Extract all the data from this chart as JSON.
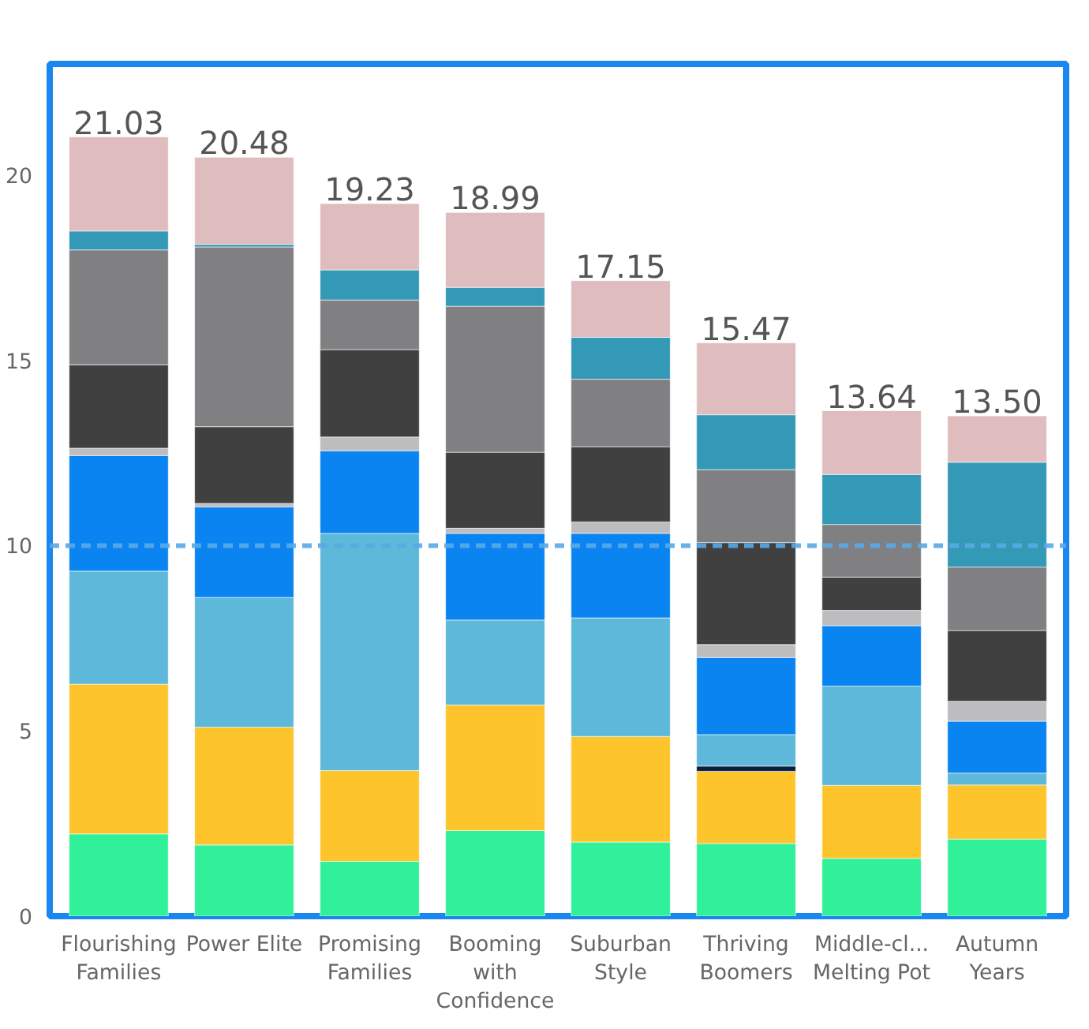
{
  "chart_data": {
    "type": "bar",
    "stacked": true,
    "categories": [
      "Flourishing Families",
      "Power Elite",
      "Promising Families",
      "Booming with Confidence",
      "Suburban Style",
      "Thriving Boomers",
      "Middle-cl... Melting Pot",
      "Autumn Years"
    ],
    "series": [
      {
        "color": "#31f09a",
        "values": [
          2.22,
          1.92,
          1.48,
          2.31,
          2.0,
          1.96,
          1.56,
          2.08
        ]
      },
      {
        "color": "#fec42c",
        "values": [
          4.04,
          3.18,
          2.45,
          3.39,
          2.85,
          1.95,
          1.97,
          1.46
        ]
      },
      {
        "color": "#0a1e3c",
        "values": [
          null,
          null,
          null,
          null,
          null,
          0.14,
          null,
          null
        ]
      },
      {
        "color": "#5db8d9",
        "values": [
          3.05,
          3.5,
          6.4,
          2.29,
          3.2,
          0.85,
          2.68,
          0.32
        ]
      },
      {
        "color": "#0a84f0",
        "values": [
          3.12,
          2.45,
          2.23,
          2.34,
          2.28,
          2.08,
          1.63,
          1.4
        ]
      },
      {
        "color": "#bdbdbf",
        "values": [
          0.2,
          0.09,
          0.37,
          0.14,
          0.31,
          0.35,
          0.41,
          0.54
        ]
      },
      {
        "color": "#404040",
        "values": [
          2.25,
          2.07,
          2.36,
          2.05,
          2.03,
          2.75,
          0.9,
          1.91
        ]
      },
      {
        "color": "#808083",
        "values": [
          3.1,
          4.85,
          1.34,
          3.94,
          1.82,
          1.97,
          1.42,
          1.71
        ]
      },
      {
        "color": "#3399b7",
        "values": [
          0.51,
          0.07,
          0.81,
          0.51,
          1.13,
          1.48,
          1.35,
          2.83
        ]
      },
      {
        "color": "#dfbcbe",
        "values": [
          2.54,
          2.35,
          1.79,
          2.02,
          1.53,
          1.94,
          1.72,
          1.25
        ]
      }
    ],
    "totals": [
      "21.03",
      "20.48",
      "19.23",
      "18.99",
      "17.15",
      "15.47",
      "13.64",
      "13.50"
    ],
    "ylim": [
      0,
      23
    ],
    "yticks": [
      0,
      5,
      10,
      15,
      20
    ],
    "ref_lines": [
      {
        "axis": "y",
        "value": 10,
        "color": "#5aa9e6",
        "line_style": "dashed"
      }
    ],
    "grid": false
  }
}
